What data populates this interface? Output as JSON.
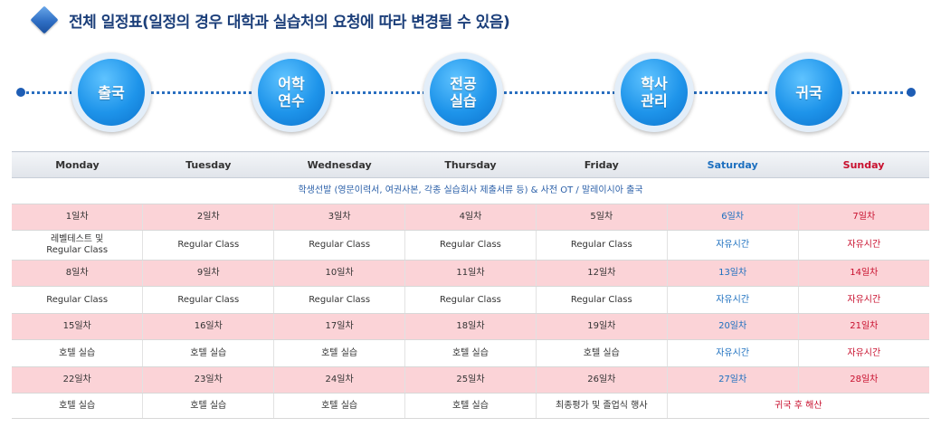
{
  "title": "전체 일정표(일정의 경우 대학과 실습처의 요청에 따라 변경될 수 있음)",
  "timeline": [
    {
      "name": "departure",
      "label": "출국"
    },
    {
      "name": "language",
      "label": "어학\n연수"
    },
    {
      "name": "major-practice",
      "label": "전공\n실습"
    },
    {
      "name": "academic",
      "label": "학사\n관리"
    },
    {
      "name": "return",
      "label": "귀국"
    }
  ],
  "table": {
    "headers": [
      "Monday",
      "Tuesday",
      "Wednesday",
      "Thursday",
      "Friday",
      "Saturday",
      "Sunday"
    ],
    "intro": "학생선발 (영문이력서, 여권사본, 각종 실습회사 제출서류 등) & 사전 OT  / 말레이시아 출국",
    "weeks": [
      {
        "days": [
          "1일차",
          "2일차",
          "3일차",
          "4일차",
          "5일차",
          "6일차",
          "7일차"
        ],
        "acts": [
          "레벨테스트 및\nRegular  Class",
          "Regular  Class",
          "Regular  Class",
          "Regular Class",
          "Regular  Class",
          "자유시간",
          "자유시간"
        ]
      },
      {
        "days": [
          "8일차",
          "9일차",
          "10일차",
          "11일차",
          "12일차",
          "13일차",
          "14일차"
        ],
        "acts": [
          "Regular Class",
          "Regular  Class",
          "Regular  Class",
          "Regular  Class",
          "Regular  Class",
          "자유시간",
          "자유시간"
        ]
      },
      {
        "days": [
          "15일차",
          "16일차",
          "17일차",
          "18일차",
          "19일차",
          "20일차",
          "21일차"
        ],
        "acts": [
          "호텔 실습",
          "호텔 실습",
          "호텔 실습",
          "호텔 실습",
          "호텔 실습",
          "자유시간",
          "자유시간"
        ]
      },
      {
        "days": [
          "22일차",
          "23일차",
          "24일차",
          "25일차",
          "26일차",
          "27일차",
          "28일차"
        ],
        "acts": [
          "호텔 실습",
          "호텔 실습",
          "호텔 실습",
          "호텔 실습",
          "최종평가 및 졸업식 행사"
        ],
        "weekend_merged": "귀국 후 해산"
      }
    ]
  }
}
